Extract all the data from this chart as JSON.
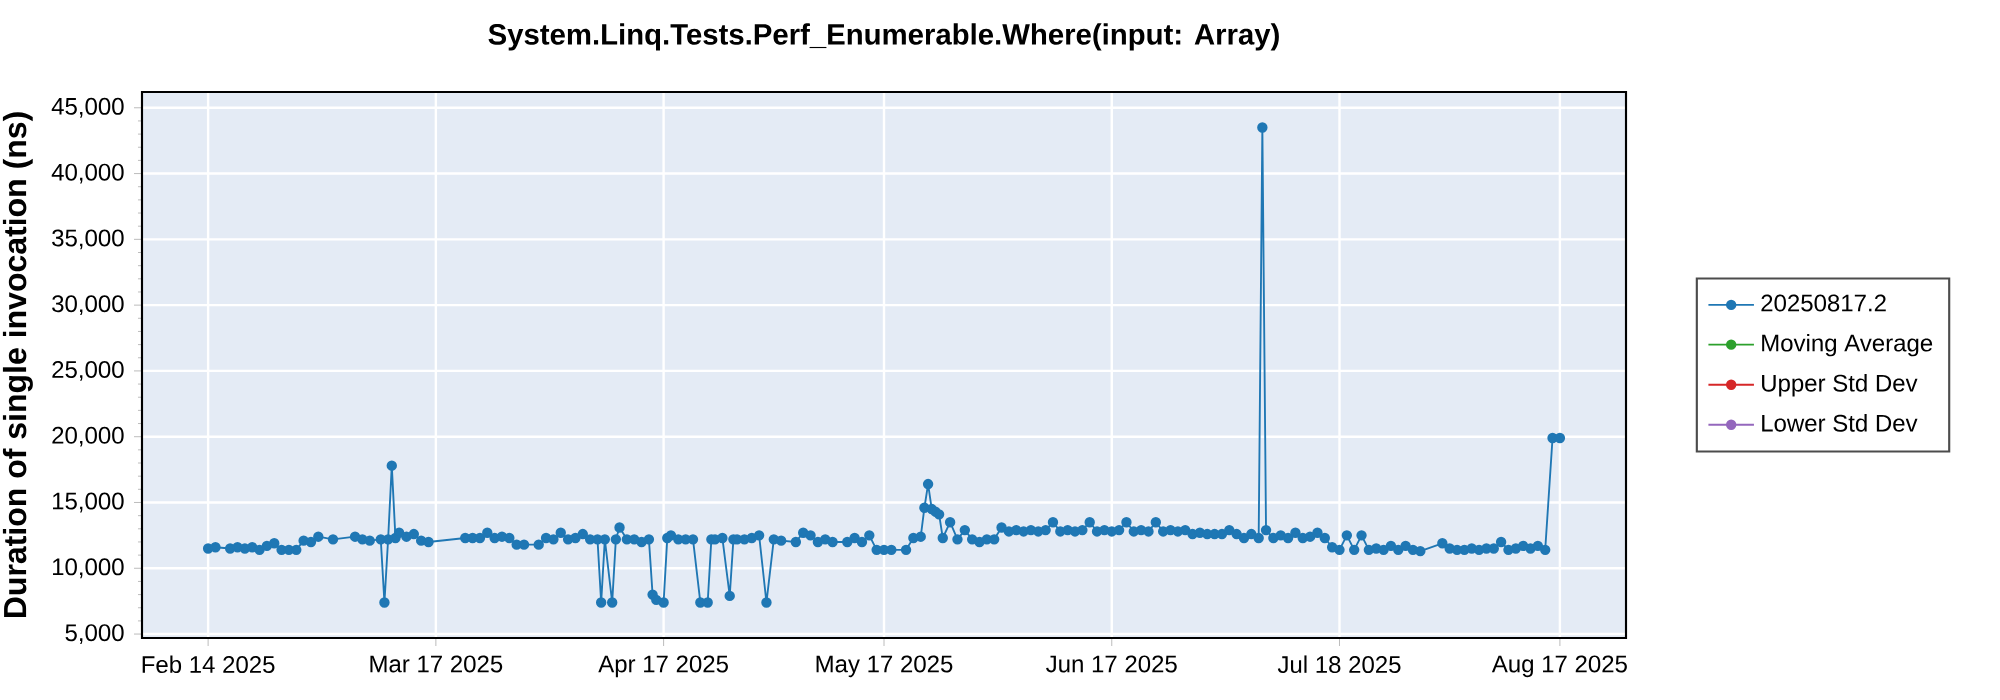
{
  "chart_data": {
    "type": "line",
    "title": "System.Linq.Tests.Perf_Enumerable.Where(input: Array)",
    "ylabel": "Duration of single invocation (ns)",
    "xlim": [
      "2025-02-05",
      "2025-08-26"
    ],
    "ylim": [
      4700,
      46200
    ],
    "xticks": [
      {
        "value": "2025-02-14",
        "label": "Feb 14 2025"
      },
      {
        "value": "2025-03-17",
        "label": "Mar 17 2025"
      },
      {
        "value": "2025-04-17",
        "label": "Apr 17 2025"
      },
      {
        "value": "2025-05-17",
        "label": "May 17 2025"
      },
      {
        "value": "2025-06-17",
        "label": "Jun 17 2025"
      },
      {
        "value": "2025-07-18",
        "label": "Jul 18 2025"
      },
      {
        "value": "2025-08-17",
        "label": "Aug 17 2025"
      }
    ],
    "yticks": [
      {
        "value": 5000,
        "label": "5,000"
      },
      {
        "value": 10000,
        "label": "10,000"
      },
      {
        "value": 15000,
        "label": "15,000"
      },
      {
        "value": 20000,
        "label": "20,000"
      },
      {
        "value": 25000,
        "label": "25,000"
      },
      {
        "value": 30000,
        "label": "30,000"
      },
      {
        "value": 35000,
        "label": "35,000"
      },
      {
        "value": 40000,
        "label": "40,000"
      },
      {
        "value": 45000,
        "label": "45,000"
      }
    ],
    "grid": true,
    "legend": "right",
    "marker": "circle",
    "line_style": "solid",
    "series": [
      {
        "name": "20250817.2",
        "color": "#1f77b4",
        "x": [
          "2025-02-14",
          "2025-02-15",
          "2025-02-17",
          "2025-02-18",
          "2025-02-19",
          "2025-02-20",
          "2025-02-21",
          "2025-02-22",
          "2025-02-23",
          "2025-02-24",
          "2025-02-25",
          "2025-02-26",
          "2025-02-27",
          "2025-02-28",
          "2025-03-01",
          "2025-03-03",
          "2025-03-06",
          "2025-03-07",
          "2025-03-08",
          "2025-03-09T12:00",
          "2025-03-10",
          "2025-03-10T12:00",
          "2025-03-11",
          "2025-03-11T12:00",
          "2025-03-12",
          "2025-03-13",
          "2025-03-14",
          "2025-03-15",
          "2025-03-16",
          "2025-03-21",
          "2025-03-22",
          "2025-03-23",
          "2025-03-24",
          "2025-03-25",
          "2025-03-26",
          "2025-03-27",
          "2025-03-28",
          "2025-03-29",
          "2025-03-31",
          "2025-04-01",
          "2025-04-02",
          "2025-04-03",
          "2025-04-04",
          "2025-04-05",
          "2025-04-06",
          "2025-04-07",
          "2025-04-08",
          "2025-04-08T12:00",
          "2025-04-09",
          "2025-04-10",
          "2025-04-10T12:00",
          "2025-04-11",
          "2025-04-12",
          "2025-04-13",
          "2025-04-14",
          "2025-04-15",
          "2025-04-15T12:00",
          "2025-04-16",
          "2025-04-17",
          "2025-04-17T12:00",
          "2025-04-18",
          "2025-04-19",
          "2025-04-20",
          "2025-04-21",
          "2025-04-22",
          "2025-04-23",
          "2025-04-23T12:00",
          "2025-04-24",
          "2025-04-25",
          "2025-04-26",
          "2025-04-26T12:00",
          "2025-04-27",
          "2025-04-28",
          "2025-04-29",
          "2025-04-30",
          "2025-05-01",
          "2025-05-02",
          "2025-05-03",
          "2025-05-05",
          "2025-05-06",
          "2025-05-07",
          "2025-05-08",
          "2025-05-09",
          "2025-05-10",
          "2025-05-12",
          "2025-05-13",
          "2025-05-14",
          "2025-05-15",
          "2025-05-16",
          "2025-05-17",
          "2025-05-18",
          "2025-05-20",
          "2025-05-21",
          "2025-05-22",
          "2025-05-22T12:00",
          "2025-05-23",
          "2025-05-23T12:00",
          "2025-05-24",
          "2025-05-24T12:00",
          "2025-05-25",
          "2025-05-26",
          "2025-05-27",
          "2025-05-28",
          "2025-05-29",
          "2025-05-30",
          "2025-05-31",
          "2025-06-01",
          "2025-06-02",
          "2025-06-03",
          "2025-06-04",
          "2025-06-05",
          "2025-06-06",
          "2025-06-07",
          "2025-06-08",
          "2025-06-09",
          "2025-06-10",
          "2025-06-11",
          "2025-06-12",
          "2025-06-13",
          "2025-06-14",
          "2025-06-15",
          "2025-06-16",
          "2025-06-17",
          "2025-06-18",
          "2025-06-19",
          "2025-06-20",
          "2025-06-21",
          "2025-06-22",
          "2025-06-23",
          "2025-06-24",
          "2025-06-25",
          "2025-06-26",
          "2025-06-27",
          "2025-06-28",
          "2025-06-29",
          "2025-06-30",
          "2025-07-01",
          "2025-07-02",
          "2025-07-03",
          "2025-07-04",
          "2025-07-05",
          "2025-07-06",
          "2025-07-07",
          "2025-07-07T12:00",
          "2025-07-08",
          "2025-07-09",
          "2025-07-10",
          "2025-07-11",
          "2025-07-12",
          "2025-07-13",
          "2025-07-14",
          "2025-07-15",
          "2025-07-16",
          "2025-07-17",
          "2025-07-18",
          "2025-07-19",
          "2025-07-20",
          "2025-07-21",
          "2025-07-22",
          "2025-07-23",
          "2025-07-24",
          "2025-07-25",
          "2025-07-26",
          "2025-07-27",
          "2025-07-28",
          "2025-07-29",
          "2025-08-01",
          "2025-08-02",
          "2025-08-03",
          "2025-08-04",
          "2025-08-05",
          "2025-08-06",
          "2025-08-07",
          "2025-08-08",
          "2025-08-09",
          "2025-08-10",
          "2025-08-11",
          "2025-08-12",
          "2025-08-13",
          "2025-08-14",
          "2025-08-15",
          "2025-08-16",
          "2025-08-17"
        ],
        "values": [
          11500,
          11600,
          11500,
          11600,
          11500,
          11600,
          11400,
          11700,
          11900,
          11400,
          11400,
          11400,
          12100,
          12000,
          12400,
          12200,
          12400,
          12200,
          12100,
          12200,
          7400,
          12200,
          17800,
          12300,
          12700,
          12400,
          12600,
          12100,
          12000,
          12300,
          12300,
          12300,
          12700,
          12300,
          12400,
          12300,
          11800,
          11800,
          11800,
          12300,
          12200,
          12700,
          12200,
          12300,
          12600,
          12200,
          12200,
          7400,
          12200,
          7400,
          12200,
          13100,
          12200,
          12200,
          12000,
          12200,
          8000,
          7600,
          7400,
          12300,
          12500,
          12200,
          12200,
          12200,
          7400,
          7400,
          12200,
          12200,
          12300,
          7900,
          12200,
          12200,
          12200,
          12300,
          12500,
          7400,
          12200,
          12100,
          12000,
          12700,
          12500,
          12000,
          12200,
          12000,
          12000,
          12300,
          12000,
          12500,
          11400,
          11400,
          11400,
          11400,
          12300,
          12400,
          14600,
          16400,
          14500,
          14300,
          14100,
          12300,
          13500,
          12200,
          12900,
          12200,
          12000,
          12200,
          12200,
          13100,
          12800,
          12900,
          12800,
          12900,
          12800,
          12900,
          13500,
          12800,
          12900,
          12800,
          12900,
          13500,
          12800,
          12900,
          12800,
          12900,
          13500,
          12800,
          12900,
          12800,
          13500,
          12800,
          12900,
          12800,
          12900,
          12600,
          12700,
          12600,
          12600,
          12600,
          12900,
          12600,
          12300,
          12600,
          12300,
          43500,
          12900,
          12300,
          12500,
          12300,
          12700,
          12300,
          12400,
          12700,
          12300,
          11600,
          11400,
          12500,
          11400,
          12500,
          11400,
          11500,
          11400,
          11700,
          11400,
          11700,
          11400,
          11300,
          11900,
          11500,
          11400,
          11400,
          11500,
          11400,
          11500,
          11500,
          12000,
          11400,
          11500,
          11700,
          11500,
          11700,
          11400,
          19900,
          19900
        ]
      },
      {
        "name": "Moving Average",
        "color": "#2ca02c"
      },
      {
        "name": "Upper Std Dev",
        "color": "#d62728"
      },
      {
        "name": "Lower Std Dev",
        "color": "#9467bd"
      }
    ]
  }
}
